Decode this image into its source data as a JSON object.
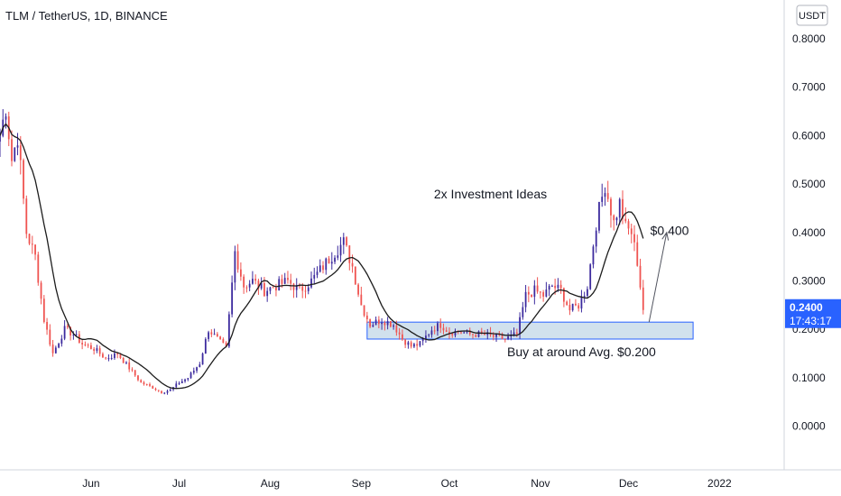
{
  "chart_data": {
    "type": "candlestick",
    "title": "TLM / TetherUS, 1D, BINANCE",
    "currency": "USDT",
    "y_ticks": [
      0.0,
      0.1,
      0.2,
      0.3,
      0.4,
      0.5,
      0.6,
      0.7,
      0.8
    ],
    "y_tick_labels": [
      "0.0000",
      "0.1000",
      "0.2000",
      "0.3000",
      "0.4000",
      "0.5000",
      "0.6000",
      "0.7000",
      "0.8000"
    ],
    "ylim": [
      -0.09,
      0.88
    ],
    "x_labels": [
      "Jun",
      "Jul",
      "Aug",
      "Sep",
      "Oct",
      "Nov",
      "Dec",
      "2022"
    ],
    "x_label_days": [
      31,
      61,
      92,
      123,
      153,
      184,
      214,
      245
    ],
    "xlim": [
      0,
      267
    ],
    "price_keyframes": [
      [
        0,
        0.6
      ],
      [
        2,
        0.66
      ],
      [
        4,
        0.55
      ],
      [
        6,
        0.6
      ],
      [
        9,
        0.4
      ],
      [
        12,
        0.35
      ],
      [
        15,
        0.22
      ],
      [
        18,
        0.15
      ],
      [
        22,
        0.2
      ],
      [
        25,
        0.19
      ],
      [
        28,
        0.17
      ],
      [
        32,
        0.16
      ],
      [
        36,
        0.14
      ],
      [
        40,
        0.15
      ],
      [
        44,
        0.12
      ],
      [
        48,
        0.09
      ],
      [
        52,
        0.08
      ],
      [
        55,
        0.07
      ],
      [
        58,
        0.075
      ],
      [
        61,
        0.09
      ],
      [
        64,
        0.1
      ],
      [
        68,
        0.13
      ],
      [
        71,
        0.2
      ],
      [
        74,
        0.18
      ],
      [
        77,
        0.16
      ],
      [
        80,
        0.36
      ],
      [
        83,
        0.29
      ],
      [
        86,
        0.3
      ],
      [
        90,
        0.28
      ],
      [
        94,
        0.29
      ],
      [
        98,
        0.3
      ],
      [
        102,
        0.28
      ],
      [
        106,
        0.3
      ],
      [
        110,
        0.33
      ],
      [
        114,
        0.36
      ],
      [
        117,
        0.38
      ],
      [
        120,
        0.33
      ],
      [
        123,
        0.25
      ],
      [
        126,
        0.21
      ],
      [
        130,
        0.22
      ],
      [
        134,
        0.21
      ],
      [
        137,
        0.18
      ],
      [
        140,
        0.165
      ],
      [
        143,
        0.17
      ],
      [
        147,
        0.2
      ],
      [
        150,
        0.21
      ],
      [
        153,
        0.195
      ],
      [
        157,
        0.195
      ],
      [
        160,
        0.19
      ],
      [
        164,
        0.19
      ],
      [
        168,
        0.185
      ],
      [
        172,
        0.18
      ],
      [
        176,
        0.19
      ],
      [
        179,
        0.27
      ],
      [
        182,
        0.28
      ],
      [
        185,
        0.27
      ],
      [
        188,
        0.29
      ],
      [
        191,
        0.28
      ],
      [
        194,
        0.24
      ],
      [
        197,
        0.25
      ],
      [
        200,
        0.29
      ],
      [
        203,
        0.42
      ],
      [
        206,
        0.5
      ],
      [
        209,
        0.42
      ],
      [
        211,
        0.46
      ],
      [
        213,
        0.41
      ],
      [
        215,
        0.4
      ],
      [
        217,
        0.34
      ],
      [
        219,
        0.24
      ]
    ],
    "last_price_label": "0.2400",
    "countdown": "17:43:17",
    "support_zone": {
      "day_start": 125,
      "day_end": 236,
      "low": 0.18,
      "high": 0.215
    },
    "annotations": [
      {
        "text": "2x Investment Ideas",
        "x_day": 167,
        "y": 0.47
      },
      {
        "text": "$0.400",
        "x_day": 228,
        "y": 0.395
      },
      {
        "text": "Buy at around Avg. $0.200",
        "x_day": 198,
        "y": 0.145
      }
    ],
    "arrow": {
      "from_day": 221,
      "from_y": 0.215,
      "to_day": 227,
      "to_y": 0.4
    },
    "colors": {
      "up": "#3c2a9e",
      "down": "#ef5350",
      "ma": "#1c1c1c",
      "zone_fill": "#c9dcea",
      "zone_border": "#2962ff",
      "badge": "#2962ff",
      "grid": "#ffffff",
      "text": "#131722"
    }
  }
}
